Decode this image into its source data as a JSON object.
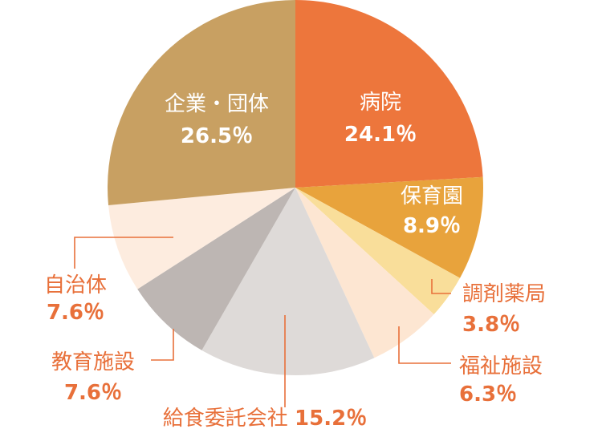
{
  "chart_data": {
    "type": "pie",
    "title": "",
    "start": "12 o'clock, clockwise",
    "slices": [
      {
        "label": "病院",
        "value": 24.1,
        "display": "24.1％",
        "color": "#ed763c",
        "label_color": "#ffffff",
        "label_position": "inside"
      },
      {
        "label": "保育園",
        "value": 8.9,
        "display": "8.9％",
        "color": "#e8a33c",
        "label_color": "#ffffff",
        "label_position": "inside"
      },
      {
        "label": "調剤薬局",
        "value": 3.8,
        "display": "3.8％",
        "color": "#f9de9a",
        "label_color": "#e8703a",
        "label_position": "outside-right"
      },
      {
        "label": "福祉施設",
        "value": 6.3,
        "display": "6.3％",
        "color": "#fde6d2",
        "label_color": "#e8703a",
        "label_position": "outside-right"
      },
      {
        "label": "給食委託会社",
        "value": 15.2,
        "display": "15.2％",
        "color": "#dedad8",
        "label_color": "#e8703a",
        "label_position": "outside-bottom"
      },
      {
        "label": "教育施設",
        "value": 7.6,
        "display": "7.6％",
        "color": "#bdb6b3",
        "label_color": "#e8703a",
        "label_position": "outside-left"
      },
      {
        "label": "自治体",
        "value": 7.6,
        "display": "7.6％",
        "color": "#fdecdf",
        "label_color": "#e8703a",
        "label_position": "outside-left"
      },
      {
        "label": "企業・団体",
        "value": 26.5,
        "display": "26.5％",
        "color": "#c8a062",
        "label_color": "#ffffff",
        "label_position": "inside"
      }
    ],
    "leader_line_color": "#e8703a"
  }
}
